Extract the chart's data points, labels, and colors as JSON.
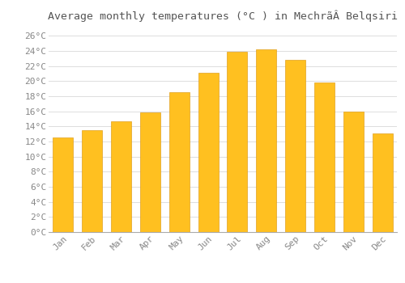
{
  "title": "Average monthly temperatures (°C ) in MechrãÂ Belqsiri",
  "months": [
    "Jan",
    "Feb",
    "Mar",
    "Apr",
    "May",
    "Jun",
    "Jul",
    "Aug",
    "Sep",
    "Oct",
    "Nov",
    "Dec"
  ],
  "temperatures": [
    12.5,
    13.5,
    14.7,
    15.9,
    18.5,
    21.1,
    23.9,
    24.2,
    22.8,
    19.8,
    16.0,
    13.1
  ],
  "bar_color": "#FFC020",
  "bar_edge_color": "#E0A020",
  "background_color": "#FFFFFF",
  "grid_color": "#DDDDDD",
  "ylim": [
    0,
    27
  ],
  "ytick_step": 2,
  "title_fontsize": 9.5,
  "tick_fontsize": 8,
  "title_color": "#555555",
  "tick_color": "#888888"
}
